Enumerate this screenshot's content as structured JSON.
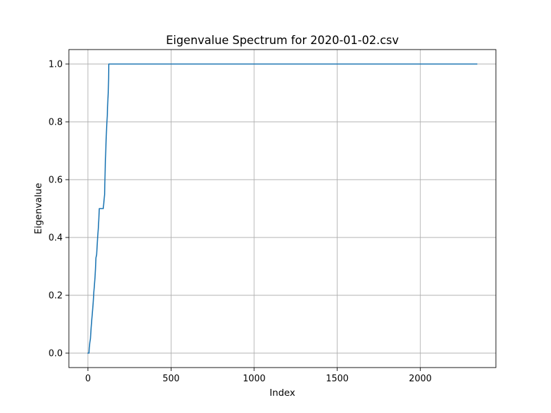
{
  "chart_data": {
    "type": "line",
    "title": "Eigenvalue Spectrum for 2020-01-02.csv",
    "xlabel": "Index",
    "ylabel": "Eigenvalue",
    "xlim": [
      -115,
      2455
    ],
    "ylim": [
      -0.05,
      1.05
    ],
    "x_ticks": [
      0,
      500,
      1000,
      1500,
      2000
    ],
    "x_tick_labels": [
      "0",
      "500",
      "1000",
      "1500",
      "2000"
    ],
    "y_ticks": [
      0.0,
      0.2,
      0.4,
      0.6,
      0.8,
      1.0
    ],
    "y_tick_labels": [
      "0.0",
      "0.2",
      "0.4",
      "0.6",
      "0.8",
      "1.0"
    ],
    "grid": true,
    "legend": "none",
    "series": [
      {
        "color": "#1f77b4",
        "x": [
          0,
          6,
          8,
          12,
          15,
          18,
          22,
          25,
          28,
          32,
          35,
          38,
          42,
          45,
          48,
          52,
          55,
          58,
          62,
          65,
          68,
          72,
          75,
          78,
          85,
          92,
          100,
          102,
          104,
          106,
          108,
          110,
          112,
          114,
          116,
          118,
          120,
          122,
          124,
          125,
          2340
        ],
        "y": [
          0.0,
          0.0,
          0.02,
          0.04,
          0.05,
          0.08,
          0.11,
          0.13,
          0.15,
          0.18,
          0.21,
          0.23,
          0.26,
          0.29,
          0.33,
          0.34,
          0.37,
          0.4,
          0.43,
          0.46,
          0.5,
          0.5,
          0.5,
          0.5,
          0.5,
          0.5,
          0.55,
          0.6,
          0.65,
          0.68,
          0.72,
          0.75,
          0.78,
          0.8,
          0.82,
          0.85,
          0.88,
          0.9,
          0.95,
          1.0,
          1.0
        ]
      }
    ]
  }
}
